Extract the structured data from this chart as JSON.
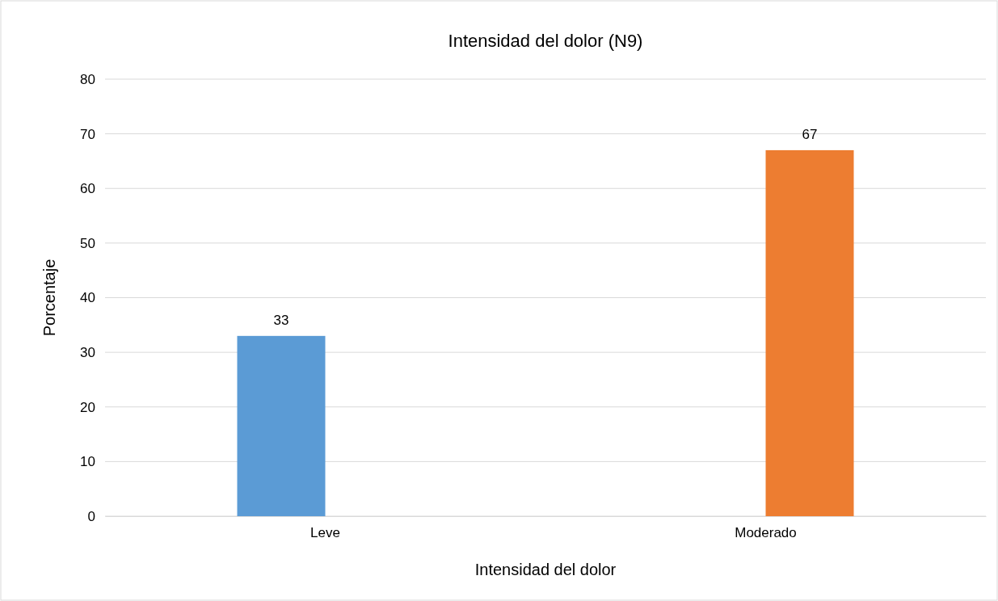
{
  "chart_data": {
    "type": "bar",
    "title": "Intensidad del dolor (N9)",
    "xlabel": "Intensidad del dolor",
    "ylabel": "Porcentaje",
    "categories": [
      "Leve",
      "Moderado"
    ],
    "series": [
      {
        "color": "#5b9bd5",
        "values": [
          33,
          null
        ]
      },
      {
        "color": "#ed7d31",
        "values": [
          null,
          67
        ]
      }
    ],
    "ylim": [
      0,
      80
    ],
    "yticks": [
      0,
      10,
      20,
      30,
      40,
      50,
      60,
      70,
      80
    ],
    "grid": "y",
    "data_labels": true
  }
}
